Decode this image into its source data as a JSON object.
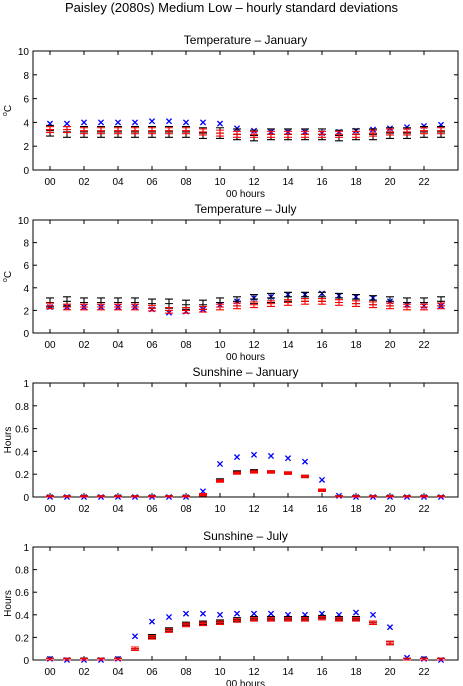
{
  "figure": {
    "title": "Paisley (2080s) Medium Low – hourly standard deviations"
  },
  "colors": {
    "observed": "#0000ff",
    "baseline": "#000000",
    "future": "#ff0000",
    "axis": "#000000"
  },
  "chart_data": [
    {
      "type": "scatter",
      "title": "Temperature – January",
      "xlabel": "00 hours",
      "ylabel": "°C",
      "ylim": [
        0,
        10
      ],
      "yticks": [
        0,
        2,
        4,
        6,
        8,
        10
      ],
      "xlim": [
        -1,
        24
      ],
      "xticks": [
        "00",
        "02",
        "04",
        "06",
        "08",
        "10",
        "12",
        "14",
        "16",
        "18",
        "20",
        "22"
      ],
      "series": [
        {
          "marker": "x",
          "values": [
            3.9,
            3.9,
            4.0,
            4.0,
            4.0,
            4.0,
            4.1,
            4.1,
            4.0,
            4.0,
            3.9,
            3.5,
            3.3,
            3.2,
            3.2,
            3.2,
            3.1,
            3.2,
            3.3,
            3.4,
            3.5,
            3.6,
            3.7,
            3.8
          ]
        },
        {
          "marker": "errorbar",
          "values": [
            3.3,
            3.2,
            3.2,
            3.2,
            3.2,
            3.2,
            3.2,
            3.2,
            3.2,
            3.1,
            3.1,
            3.0,
            2.9,
            3.0,
            3.0,
            3.0,
            3.0,
            2.9,
            3.0,
            3.0,
            3.1,
            3.1,
            3.2,
            3.2
          ],
          "err": 0.45
        },
        {
          "marker": "errorbar",
          "values": [
            3.4,
            3.4,
            3.3,
            3.3,
            3.3,
            3.3,
            3.3,
            3.3,
            3.3,
            3.2,
            3.1,
            3.0,
            3.0,
            3.0,
            3.0,
            3.0,
            3.0,
            3.0,
            3.0,
            3.1,
            3.2,
            3.2,
            3.3,
            3.3
          ],
          "err": 0.25
        }
      ]
    },
    {
      "type": "scatter",
      "title": "Temperature – July",
      "xlabel": "00 hours",
      "ylabel": "°C",
      "ylim": [
        0,
        10
      ],
      "yticks": [
        0,
        2,
        4,
        6,
        8,
        10
      ],
      "xlim": [
        -1,
        24
      ],
      "xticks": [
        "00",
        "02",
        "04",
        "06",
        "08",
        "10",
        "12",
        "14",
        "16",
        "18",
        "20",
        "22"
      ],
      "series": [
        {
          "marker": "x",
          "values": [
            2.3,
            2.3,
            2.3,
            2.3,
            2.3,
            2.3,
            2.1,
            1.8,
            1.9,
            2.1,
            2.5,
            2.8,
            3.1,
            3.2,
            3.4,
            3.4,
            3.5,
            3.3,
            3.2,
            3.1,
            2.8,
            2.5,
            2.4,
            2.4
          ]
        },
        {
          "marker": "errorbar",
          "values": [
            2.7,
            2.8,
            2.7,
            2.7,
            2.7,
            2.7,
            2.6,
            2.6,
            2.5,
            2.5,
            2.7,
            2.8,
            3.0,
            3.1,
            3.2,
            3.2,
            3.2,
            3.1,
            3.0,
            2.9,
            2.8,
            2.7,
            2.7,
            2.8
          ],
          "err": 0.4
        },
        {
          "marker": "errorbar",
          "values": [
            2.4,
            2.3,
            2.3,
            2.3,
            2.3,
            2.3,
            2.2,
            2.0,
            2.0,
            2.1,
            2.3,
            2.4,
            2.5,
            2.6,
            2.7,
            2.8,
            2.8,
            2.7,
            2.6,
            2.5,
            2.4,
            2.3,
            2.3,
            2.4
          ],
          "err": 0.25
        }
      ]
    },
    {
      "type": "scatter",
      "title": "Sunshine – January",
      "xlabel": "",
      "ylabel": "Hours",
      "ylim": [
        0,
        1
      ],
      "yticks": [
        0,
        0.2,
        0.4,
        0.6,
        0.8,
        1
      ],
      "xlim": [
        -1,
        24
      ],
      "xticks": [
        "00",
        "02",
        "04",
        "06",
        "08",
        "10",
        "12",
        "14",
        "16",
        "18",
        "20",
        "22"
      ],
      "series": [
        {
          "marker": "x",
          "values": [
            0,
            0,
            0,
            0,
            0,
            0,
            0,
            0,
            0,
            0.05,
            0.29,
            0.35,
            0.37,
            0.36,
            0.34,
            0.31,
            0.15,
            0.01,
            0,
            0,
            0,
            0,
            0,
            0
          ]
        },
        {
          "marker": "errorbar",
          "values": [
            0,
            0,
            0,
            0,
            0,
            0,
            0,
            0,
            0,
            0.02,
            0.15,
            0.22,
            0.23,
            0.22,
            0.21,
            0.18,
            0.06,
            0,
            0,
            0,
            0,
            0,
            0,
            0
          ],
          "err": 0.01
        },
        {
          "marker": "errorbar",
          "values": [
            0,
            0,
            0,
            0,
            0,
            0,
            0,
            0,
            0,
            0.02,
            0.14,
            0.21,
            0.22,
            0.22,
            0.21,
            0.18,
            0.06,
            0,
            0,
            0,
            0,
            0,
            0,
            0
          ],
          "err": 0.01
        }
      ]
    },
    {
      "type": "scatter",
      "title": "Sunshine – July",
      "xlabel": "00 hours",
      "ylabel": "Hours",
      "ylim": [
        0,
        1
      ],
      "yticks": [
        0,
        0.2,
        0.4,
        0.6,
        0.8,
        1
      ],
      "xlim": [
        -1,
        24
      ],
      "xticks": [
        "00",
        "02",
        "04",
        "06",
        "08",
        "10",
        "12",
        "14",
        "16",
        "18",
        "20",
        "22"
      ],
      "series": [
        {
          "marker": "x",
          "values": [
            0.01,
            0,
            0,
            0,
            0.01,
            0.21,
            0.34,
            0.38,
            0.41,
            0.41,
            0.4,
            0.41,
            0.41,
            0.41,
            0.4,
            0.4,
            0.41,
            0.4,
            0.42,
            0.4,
            0.29,
            0.02,
            0.01,
            0
          ]
        },
        {
          "marker": "errorbar",
          "values": [
            0,
            0,
            0,
            0,
            0,
            0.1,
            0.21,
            0.27,
            0.32,
            0.33,
            0.34,
            0.36,
            0.37,
            0.37,
            0.37,
            0.37,
            0.38,
            0.37,
            0.37,
            0.33,
            0.15,
            0,
            0,
            0
          ],
          "err": 0.015
        },
        {
          "marker": "errorbar",
          "values": [
            0,
            0,
            0,
            0,
            0,
            0.1,
            0.2,
            0.26,
            0.31,
            0.32,
            0.33,
            0.35,
            0.36,
            0.36,
            0.36,
            0.36,
            0.37,
            0.36,
            0.36,
            0.33,
            0.15,
            0,
            0,
            0
          ],
          "err": 0.015
        }
      ]
    }
  ]
}
